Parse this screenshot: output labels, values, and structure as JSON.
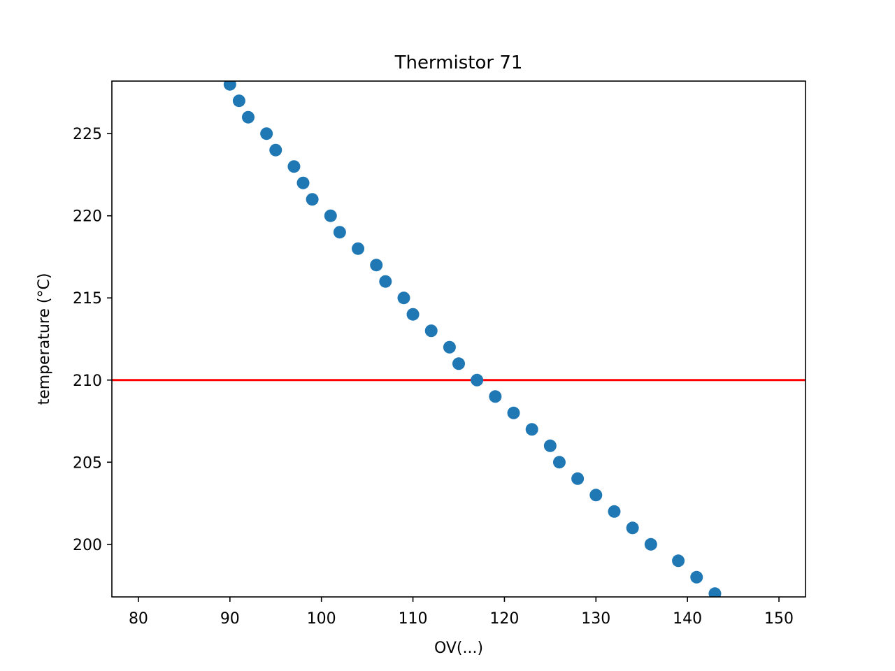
{
  "chart_data": {
    "type": "scatter",
    "title": "Thermistor 71",
    "xlabel": "OV(...)",
    "ylabel": "temperature (°C)",
    "xlim": [
      77.1,
      152.9
    ],
    "ylim": [
      196.8,
      228.2
    ],
    "xticks": [
      80,
      90,
      100,
      110,
      120,
      130,
      140,
      150
    ],
    "yticks": [
      200,
      205,
      210,
      215,
      220,
      225
    ],
    "grid": false,
    "legend": "none",
    "marker_color": "#1f77b4",
    "reference_line": {
      "orientation": "horizontal",
      "y": 210,
      "color": "#ff0000"
    },
    "series": [
      {
        "x": [
          90,
          91,
          92,
          94,
          95,
          97,
          98,
          99,
          101,
          102,
          104,
          106,
          107,
          109,
          110,
          112,
          114,
          115,
          117,
          119,
          121,
          123,
          125,
          126,
          128,
          130,
          132,
          134,
          136,
          139,
          141,
          143
        ],
        "y": [
          228,
          227,
          226,
          225,
          224,
          223,
          222,
          221,
          220,
          219,
          218,
          217,
          216,
          215,
          214,
          213,
          212,
          211,
          210,
          209,
          208,
          207,
          206,
          205,
          204,
          203,
          202,
          201,
          200,
          199,
          198,
          197
        ]
      }
    ]
  }
}
